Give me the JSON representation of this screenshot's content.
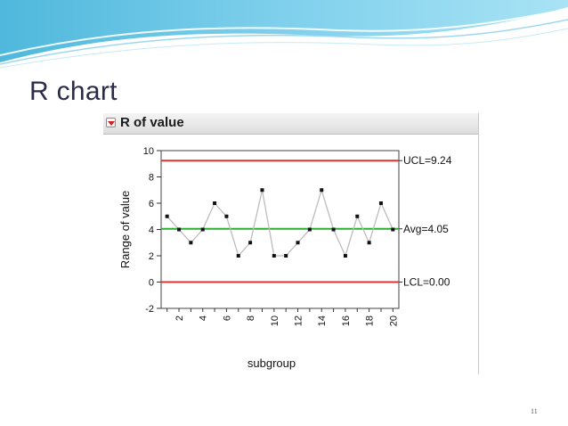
{
  "slide": {
    "title": "R chart",
    "page_number": "11"
  },
  "panel": {
    "title": "R of value"
  },
  "chart_data": {
    "type": "line",
    "title": "R of value",
    "xlabel": "subgroup",
    "ylabel": "Range of value",
    "x": [
      1,
      2,
      3,
      4,
      5,
      6,
      7,
      8,
      9,
      10,
      11,
      12,
      13,
      14,
      15,
      16,
      17,
      18,
      19,
      20
    ],
    "series": [
      {
        "values": [
          5,
          4,
          3,
          4,
          6,
          5,
          2,
          3,
          7,
          2,
          2,
          3,
          4,
          7,
          4,
          2,
          5,
          3,
          6,
          4
        ]
      }
    ],
    "xlim": [
      0.5,
      20.5
    ],
    "ylim": [
      -2,
      10
    ],
    "y_ticks": [
      -2,
      0,
      2,
      4,
      6,
      8,
      10
    ],
    "x_ticks": [
      2,
      4,
      6,
      8,
      10,
      12,
      14,
      16,
      18,
      20
    ],
    "reference_lines": [
      {
        "label": "UCL=9.24",
        "value": 9.24,
        "color": "#d93535"
      },
      {
        "label": "Avg=4.05",
        "value": 4.05,
        "color": "#2db02d"
      },
      {
        "label": "LCL=0.00",
        "value": 0.0,
        "color": "#d93535"
      }
    ],
    "grid": false,
    "line_color": "#bdbdbd",
    "marker_color": "#111111"
  }
}
